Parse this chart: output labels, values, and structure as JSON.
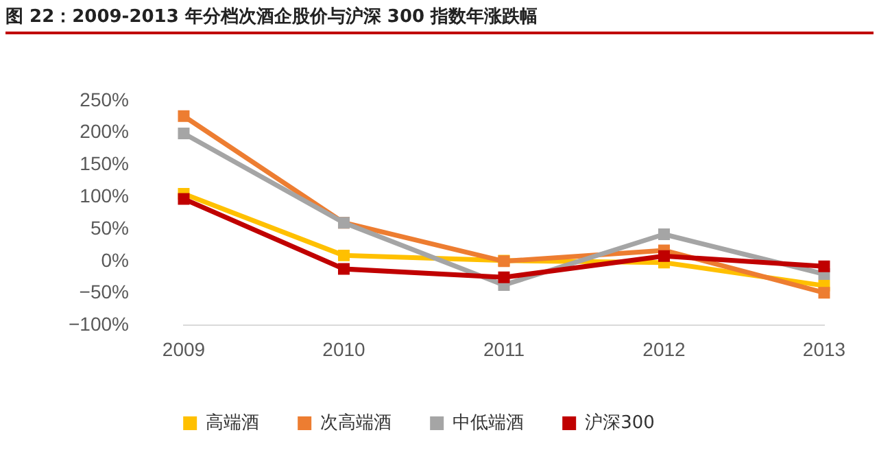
{
  "chart_data": {
    "type": "line",
    "title": "图 22：2009-2013 年分档次酒企股价与沪深 300 指数年涨跌幅",
    "categories": [
      "2009",
      "2010",
      "2011",
      "2012",
      "2013"
    ],
    "series": [
      {
        "name": "高端酒",
        "color": "#ffc000",
        "values": [
          105,
          9,
          1,
          -2,
          -38
        ]
      },
      {
        "name": "次高端酒",
        "color": "#ed7d31",
        "values": [
          226,
          60,
          0,
          17,
          -49
        ]
      },
      {
        "name": "中低端酒",
        "color": "#a5a5a5",
        "values": [
          199,
          60,
          -37,
          42,
          -20
        ]
      },
      {
        "name": "沪深300",
        "color": "#c00000",
        "values": [
          97,
          -12,
          -25,
          8,
          -8
        ]
      }
    ],
    "ylim": [
      -100,
      250
    ],
    "yticks": [
      {
        "value": -100,
        "label": "−100%"
      },
      {
        "value": -50,
        "label": "−50%"
      },
      {
        "value": 0,
        "label": "0%"
      },
      {
        "value": 50,
        "label": "50%"
      },
      {
        "value": 100,
        "label": "100%"
      },
      {
        "value": 150,
        "label": "150%"
      },
      {
        "value": 200,
        "label": "200%"
      },
      {
        "value": 250,
        "label": "250%"
      }
    ],
    "grid": false,
    "legend": "bottom",
    "marker": "square",
    "line_style": "solid"
  }
}
